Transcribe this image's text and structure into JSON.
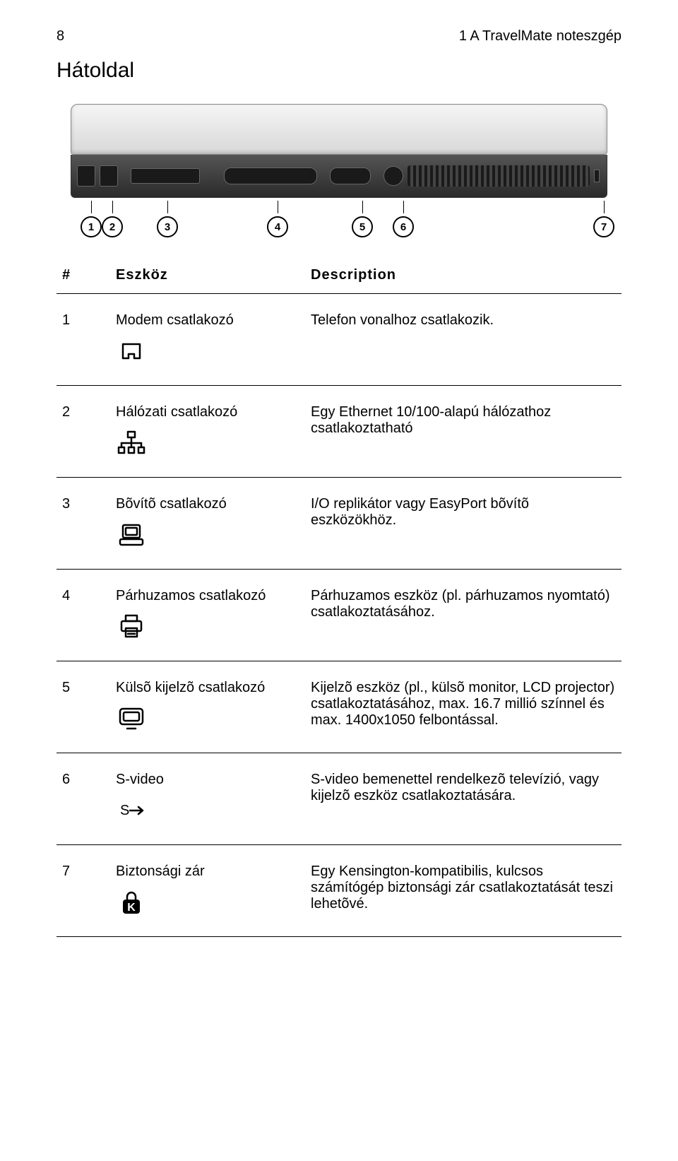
{
  "header": {
    "page_number": "8",
    "chapter": "1 A TravelMate noteszgép"
  },
  "title": "Hátoldal",
  "diagram": {
    "callouts": [
      "1",
      "2",
      "3",
      "4",
      "5",
      "6",
      "7"
    ]
  },
  "table": {
    "columns": {
      "num": "#",
      "device": "Eszköz",
      "desc": "Description"
    },
    "rows": [
      {
        "num": "1",
        "device": "Modem csatlakozó",
        "desc": "Telefon vonalhoz csatlakozik.",
        "icon": "rj11"
      },
      {
        "num": "2",
        "device": "Hálózati csatlakozó",
        "desc": "Egy Ethernet 10/100-alapú hálózathoz csatlakoztatható",
        "icon": "ethernet"
      },
      {
        "num": "3",
        "device": "Bõvítõ csatlakozó",
        "desc": "I/O replikátor vagy EasyPort bõvítõ eszközökhöz.",
        "icon": "dock"
      },
      {
        "num": "4",
        "device": "Párhuzamos csatlakozó",
        "desc": "Párhuzamos eszköz (pl. párhuzamos nyomtató) csatlakoztatásához.",
        "icon": "printer"
      },
      {
        "num": "5",
        "device": "Külsõ kijelzõ csatlakozó",
        "desc": "Kijelzõ eszköz  (pl., külsõ monitor, LCD projector) csatlakoztatásához, max. 16.7 millió színnel és max. 1400x1050 felbontással.",
        "icon": "monitor"
      },
      {
        "num": "6",
        "device": "S-video",
        "desc": "S-video bemenettel rendelkezõ televízió, vagy kijelzõ eszköz csatlakoztatására.",
        "icon": "svideo"
      },
      {
        "num": "7",
        "device": "Biztonsági zár",
        "desc": "Egy Kensington-kompatibilis, kulcsos számítógép biztonsági zár csatlakoztatását teszi lehetõvé.",
        "icon": "lock"
      }
    ]
  },
  "style": {
    "background_color": "#ffffff",
    "text_color": "#000000",
    "body_fontsize": 20,
    "title_fontsize": 30,
    "font_family": "Arial"
  }
}
